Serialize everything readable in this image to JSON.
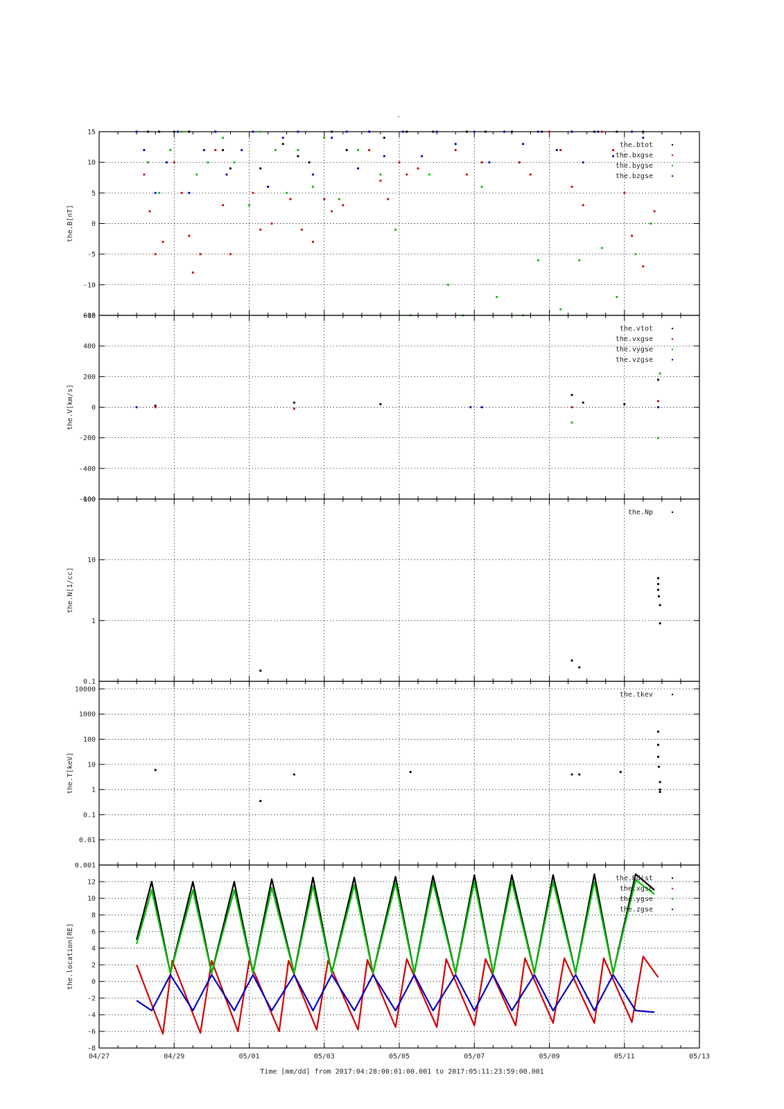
{
  "figure": {
    "title": "-",
    "x_ticks": [
      "04/27",
      "04/29",
      "05/01",
      "05/03",
      "05/05",
      "05/07",
      "05/09",
      "05/11",
      "05/13"
    ],
    "x_label": "Time [mm/dd]  from 2017:04:28:00:01:00.001  to  2017:05:11:23:59:00.001"
  },
  "colors": {
    "black": "#000000",
    "red": "#d00000",
    "green": "#00c000",
    "blue": "#0000c0"
  },
  "chart_data": [
    {
      "type": "scatter",
      "ylabel": "the.B[nT]",
      "ylim": [
        -15,
        15
      ],
      "yticks": [
        "15",
        "10",
        "5",
        "0",
        "-5",
        "-10",
        "-15"
      ],
      "legend": [
        "the.btot",
        "the.bxgse",
        "the.bygse",
        "the.bzgse"
      ],
      "legend_placement": "top-right",
      "grid": true,
      "x_range_days": [
        0,
        16
      ],
      "series": [
        {
          "name": "the.btot",
          "color": "black",
          "x": [
            1.0,
            1.3,
            1.6,
            2.0,
            2.4,
            3.1,
            3.3,
            3.5,
            4.3,
            4.5,
            4.9,
            5.3,
            5.6,
            6.2,
            6.6,
            7.2,
            7.6,
            8.2,
            8.9,
            9.8,
            10.3,
            11.0,
            11.8,
            12.6,
            13.2,
            13.8,
            14.5
          ],
          "y": [
            15,
            15,
            15,
            15,
            15,
            15,
            12,
            9,
            9,
            6,
            13,
            11,
            10,
            15,
            12,
            15,
            14,
            15,
            15,
            15,
            15,
            15,
            15,
            15,
            15,
            15,
            15
          ]
        },
        {
          "name": "the.bxgse",
          "color": "red",
          "x": [
            1.0,
            1.2,
            1.35,
            1.5,
            1.7,
            2.0,
            2.2,
            2.4,
            2.5,
            2.7,
            3.1,
            3.3,
            3.5,
            4.1,
            4.3,
            4.6,
            5.1,
            5.4,
            5.7,
            6.0,
            6.2,
            6.5,
            7.2,
            7.5,
            7.7,
            8.0,
            8.2,
            8.5,
            9.5,
            9.8,
            10.2,
            10.8,
            11.2,
            11.5,
            12.0,
            12.3,
            12.6,
            12.9,
            13.4,
            13.7,
            14.0,
            14.2,
            14.5,
            14.8
          ],
          "y": [
            15,
            8,
            2,
            -5,
            -3,
            10,
            5,
            -2,
            -8,
            -5,
            12,
            3,
            -5,
            5,
            -1,
            0,
            4,
            -1,
            -3,
            4,
            2,
            3,
            12,
            7,
            4,
            10,
            8,
            9,
            12,
            8,
            10,
            15,
            10,
            8,
            15,
            12,
            6,
            3,
            15,
            12,
            5,
            -2,
            -7,
            2
          ]
        },
        {
          "name": "the.bygse",
          "color": "green",
          "x": [
            1.0,
            1.3,
            1.6,
            1.9,
            2.2,
            2.6,
            2.9,
            3.3,
            3.6,
            4.0,
            4.3,
            4.7,
            5.0,
            5.3,
            5.7,
            6.0,
            6.4,
            6.9,
            7.5,
            7.9,
            8.3,
            8.8,
            9.3,
            9.7,
            10.2,
            10.6,
            11.3,
            11.7,
            12.3,
            12.8,
            13.4,
            13.8,
            14.3,
            14.7
          ],
          "y": [
            15,
            10,
            5,
            12,
            15,
            8,
            10,
            14,
            10,
            3,
            15,
            12,
            5,
            12,
            6,
            14,
            4,
            12,
            8,
            -1,
            -15,
            8,
            -10,
            -15,
            6,
            -12,
            -15,
            -6,
            -14,
            -6,
            -4,
            -12,
            -5,
            0
          ]
        },
        {
          "name": "the.bzgse",
          "color": "blue",
          "x": [
            1.0,
            1.2,
            1.5,
            1.8,
            2.1,
            2.4,
            2.8,
            3.1,
            3.4,
            3.8,
            4.1,
            4.5,
            4.9,
            5.3,
            5.7,
            6.2,
            6.6,
            6.9,
            7.2,
            7.6,
            8.1,
            8.6,
            9.0,
            9.5,
            10.0,
            10.4,
            10.8,
            11.3,
            11.7,
            12.2,
            12.6,
            12.9,
            13.3,
            13.7,
            14.2,
            14.5
          ],
          "y": [
            15,
            12,
            5,
            10,
            15,
            5,
            12,
            15,
            8,
            12,
            15,
            6,
            14,
            15,
            8,
            14,
            15,
            9,
            15,
            11,
            15,
            11,
            15,
            13,
            15,
            10,
            15,
            13,
            15,
            12,
            15,
            10,
            15,
            11,
            15,
            14
          ]
        }
      ]
    },
    {
      "type": "scatter",
      "ylabel": "the.V[km/s]",
      "ylim": [
        -600,
        600
      ],
      "yticks": [
        "600",
        "400",
        "200",
        "0",
        "-200",
        "-400",
        "-600"
      ],
      "legend": [
        "the.vtot",
        "the.vxgse",
        "the.vygse",
        "the.vzgse"
      ],
      "legend_placement": "top-right",
      "grid": true,
      "x_range_days": [
        0,
        16
      ],
      "series": [
        {
          "name": "the.vtot",
          "color": "black",
          "x": [
            1.5,
            5.2,
            7.5,
            12.6,
            12.9,
            14.0,
            14.9
          ],
          "y": [
            10,
            30,
            20,
            80,
            30,
            20,
            180
          ]
        },
        {
          "name": "the.vxgse",
          "color": "red",
          "x": [
            1.5,
            5.2,
            12.6,
            14.9
          ],
          "y": [
            0,
            -10,
            0,
            40
          ]
        },
        {
          "name": "the.vygse",
          "color": "green",
          "x": [
            12.6,
            14.9,
            14.95
          ],
          "y": [
            -100,
            -200,
            220
          ]
        },
        {
          "name": "the.vzgse",
          "color": "blue",
          "x": [
            1.0,
            9.9,
            10.2,
            14.9
          ],
          "y": [
            0,
            0,
            0,
            0
          ]
        }
      ]
    },
    {
      "type": "scatter",
      "ylabel": "the.N[1/cc]",
      "log": true,
      "ylim": [
        0.1,
        100
      ],
      "yticks": [
        "100",
        "10",
        "1",
        "0.1"
      ],
      "legend": [
        "the.Np"
      ],
      "legend_placement": "top-right",
      "grid": true,
      "x_range_days": [
        0,
        16
      ],
      "series": [
        {
          "name": "the.Np",
          "color": "black",
          "x": [
            4.3,
            12.6,
            12.8,
            14.9,
            14.9,
            14.9,
            14.92,
            14.95,
            14.95
          ],
          "y": [
            0.15,
            0.22,
            0.17,
            5.0,
            4.0,
            3.2,
            2.5,
            1.8,
            0.9
          ]
        }
      ]
    },
    {
      "type": "scatter",
      "ylabel": "the.T[keV]",
      "log": true,
      "ylim": [
        0.001,
        20000
      ],
      "yticks": [
        "10000",
        "1000",
        "100",
        "10",
        "1",
        "0.1",
        "0.01",
        "0.001"
      ],
      "legend": [
        "the.tkev"
      ],
      "legend_placement": "top-right",
      "grid": true,
      "x_range_days": [
        0,
        16
      ],
      "series": [
        {
          "name": "the.tkev",
          "color": "black",
          "x": [
            1.5,
            4.3,
            5.2,
            8.3,
            12.6,
            12.8,
            13.9,
            14.9,
            14.9,
            14.9,
            14.92,
            14.95,
            14.95,
            14.95
          ],
          "y": [
            6,
            0.35,
            4,
            5,
            4,
            4,
            5,
            200,
            60,
            20,
            8,
            2,
            1,
            0.8
          ]
        }
      ]
    },
    {
      "type": "line",
      "ylabel": "the.location[RE]",
      "ylim": [
        -8,
        14
      ],
      "yticks": [
        "12",
        "10",
        "8",
        "6",
        "4",
        "2",
        "0",
        "-2",
        "-4",
        "-6",
        "-8"
      ],
      "legend": [
        "the.Rdist",
        "the.xgse",
        "the.ygse",
        "the.zgse"
      ],
      "legend_placement": "top-right",
      "grid": true,
      "x_range_days": [
        0,
        16
      ],
      "orbit_period_days": 1.05,
      "series": [
        {
          "name": "the.Rdist",
          "color": "black",
          "x": [
            1.0,
            1.4,
            1.9,
            2.5,
            3.0,
            3.6,
            4.1,
            4.6,
            5.2,
            5.7,
            6.2,
            6.8,
            7.3,
            7.9,
            8.4,
            8.9,
            9.5,
            10.0,
            10.5,
            11.0,
            11.6,
            12.1,
            12.7,
            13.2,
            13.7,
            14.3,
            14.8
          ],
          "y": [
            5,
            12,
            1,
            12,
            1,
            12,
            1,
            12.3,
            1,
            12.5,
            1,
            12.5,
            1,
            12.6,
            1,
            12.7,
            1,
            12.8,
            1,
            12.8,
            1,
            12.8,
            1,
            12.9,
            1,
            12.9,
            11
          ]
        },
        {
          "name": "the.xgse",
          "color": "red",
          "x": [
            1.0,
            1.7,
            1.95,
            2.7,
            3.0,
            3.7,
            4.0,
            4.8,
            5.05,
            5.8,
            6.1,
            6.9,
            7.15,
            7.9,
            8.2,
            9.0,
            9.25,
            10.0,
            10.3,
            11.1,
            11.35,
            12.1,
            12.4,
            13.2,
            13.45,
            14.2,
            14.5,
            14.9
          ],
          "y": [
            2,
            -6.3,
            2.5,
            -6.2,
            2.5,
            -6,
            2.5,
            -6,
            2.5,
            -5.8,
            2.5,
            -5.8,
            2.6,
            -5.5,
            2.7,
            -5.5,
            2.7,
            -5.3,
            2.7,
            -5.3,
            2.8,
            -5,
            2.8,
            -5,
            2.8,
            -4.9,
            3,
            0.5
          ]
        },
        {
          "name": "the.ygse",
          "color": "green",
          "x": [
            1.0,
            1.4,
            1.9,
            2.5,
            3.0,
            3.6,
            4.1,
            4.6,
            5.2,
            5.7,
            6.2,
            6.8,
            7.3,
            7.9,
            8.4,
            8.9,
            9.5,
            10.0,
            10.5,
            11.0,
            11.6,
            12.1,
            12.7,
            13.2,
            13.7,
            14.3,
            14.8
          ],
          "y": [
            4.5,
            11,
            1,
            11,
            1,
            11,
            1,
            11.3,
            1,
            11.5,
            1,
            11.6,
            1,
            11.8,
            1,
            11.9,
            1,
            12,
            1,
            12,
            1,
            12,
            1,
            12,
            1,
            12.2,
            10.5
          ]
        },
        {
          "name": "the.zgse",
          "color": "blue",
          "x": [
            1.0,
            1.4,
            1.9,
            2.5,
            3.0,
            3.6,
            4.1,
            4.6,
            5.2,
            5.7,
            6.2,
            6.8,
            7.3,
            7.9,
            8.4,
            8.9,
            9.5,
            10.0,
            10.5,
            11.0,
            11.6,
            12.1,
            12.7,
            13.2,
            13.7,
            14.3,
            14.8
          ],
          "y": [
            -2.3,
            -3.5,
            0.8,
            -3.5,
            0.8,
            -3.5,
            0.8,
            -3.5,
            0.8,
            -3.5,
            0.8,
            -3.5,
            0.8,
            -3.5,
            0.8,
            -3.5,
            0.8,
            -3.5,
            0.8,
            -3.5,
            0.8,
            -3.5,
            0.8,
            -3.5,
            0.8,
            -3.5,
            -3.7
          ]
        }
      ]
    }
  ]
}
